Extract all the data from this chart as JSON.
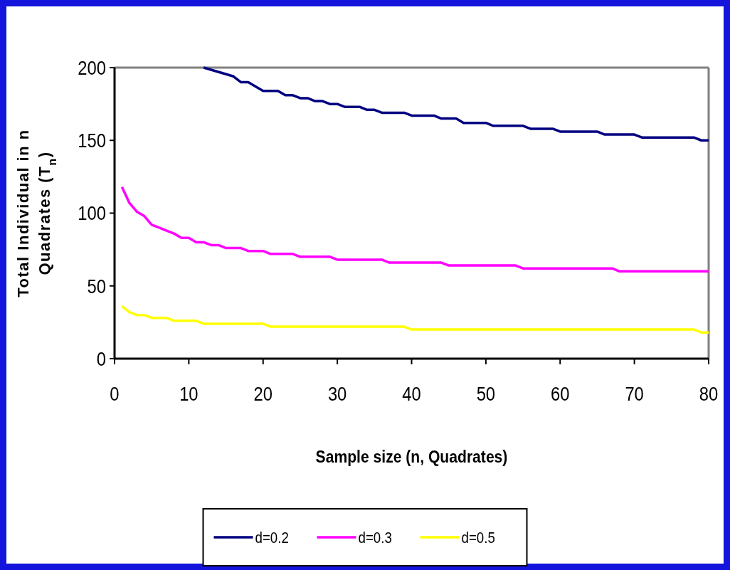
{
  "chart_data": {
    "type": "line",
    "xlabel": "Sample size (n, Quadrates)",
    "ylabel": "Total Individual in n\nQuadrates (T$_{n}$)",
    "xlim": [
      0,
      80
    ],
    "xticks": [
      0,
      10,
      20,
      30,
      40,
      50,
      60,
      70,
      80
    ],
    "ylim": [
      0,
      200
    ],
    "yticks": [
      0,
      50,
      100,
      150,
      200
    ],
    "grid": false,
    "legend": "bottom",
    "marker": "none",
    "line_style": "solid",
    "series": [
      {
        "name": "d=0.2",
        "color": "#000080",
        "x": [
          12,
          16,
          17,
          18,
          20,
          22,
          23,
          24,
          25,
          26,
          27,
          28,
          29,
          30,
          31,
          33,
          34,
          35,
          36,
          39,
          40,
          43,
          44,
          46,
          47,
          50,
          51,
          55,
          56,
          59,
          60,
          65,
          66,
          70,
          71,
          78,
          79,
          80
        ],
        "values": [
          200,
          194,
          190,
          190,
          184,
          184,
          181,
          181,
          179,
          179,
          177,
          177,
          175,
          175,
          173,
          173,
          171,
          171,
          169,
          169,
          167,
          167,
          165,
          165,
          162,
          162,
          160,
          160,
          158,
          158,
          156,
          156,
          154,
          154,
          152,
          152,
          150,
          150
        ]
      },
      {
        "name": "d=0.3",
        "color": "#ff00ff",
        "x": [
          1,
          2,
          3,
          4,
          5,
          6,
          7,
          8,
          9,
          10,
          11,
          12,
          13,
          14,
          15,
          17,
          18,
          20,
          21,
          24,
          25,
          29,
          30,
          36,
          37,
          44,
          45,
          54,
          55,
          67,
          68,
          80
        ],
        "values": [
          118,
          107,
          101,
          98,
          92,
          90,
          88,
          86,
          83,
          83,
          80,
          80,
          78,
          78,
          76,
          76,
          74,
          74,
          72,
          72,
          70,
          70,
          68,
          68,
          66,
          66,
          64,
          64,
          62,
          62,
          60,
          60
        ]
      },
      {
        "name": "d=0.5",
        "color": "#ffff00",
        "x": [
          1,
          2,
          3,
          4,
          5,
          7,
          8,
          11,
          12,
          20,
          21,
          39,
          40,
          78,
          79,
          80
        ],
        "values": [
          36,
          32,
          30,
          30,
          28,
          28,
          26,
          26,
          24,
          24,
          22,
          22,
          20,
          20,
          18,
          18
        ]
      }
    ]
  }
}
